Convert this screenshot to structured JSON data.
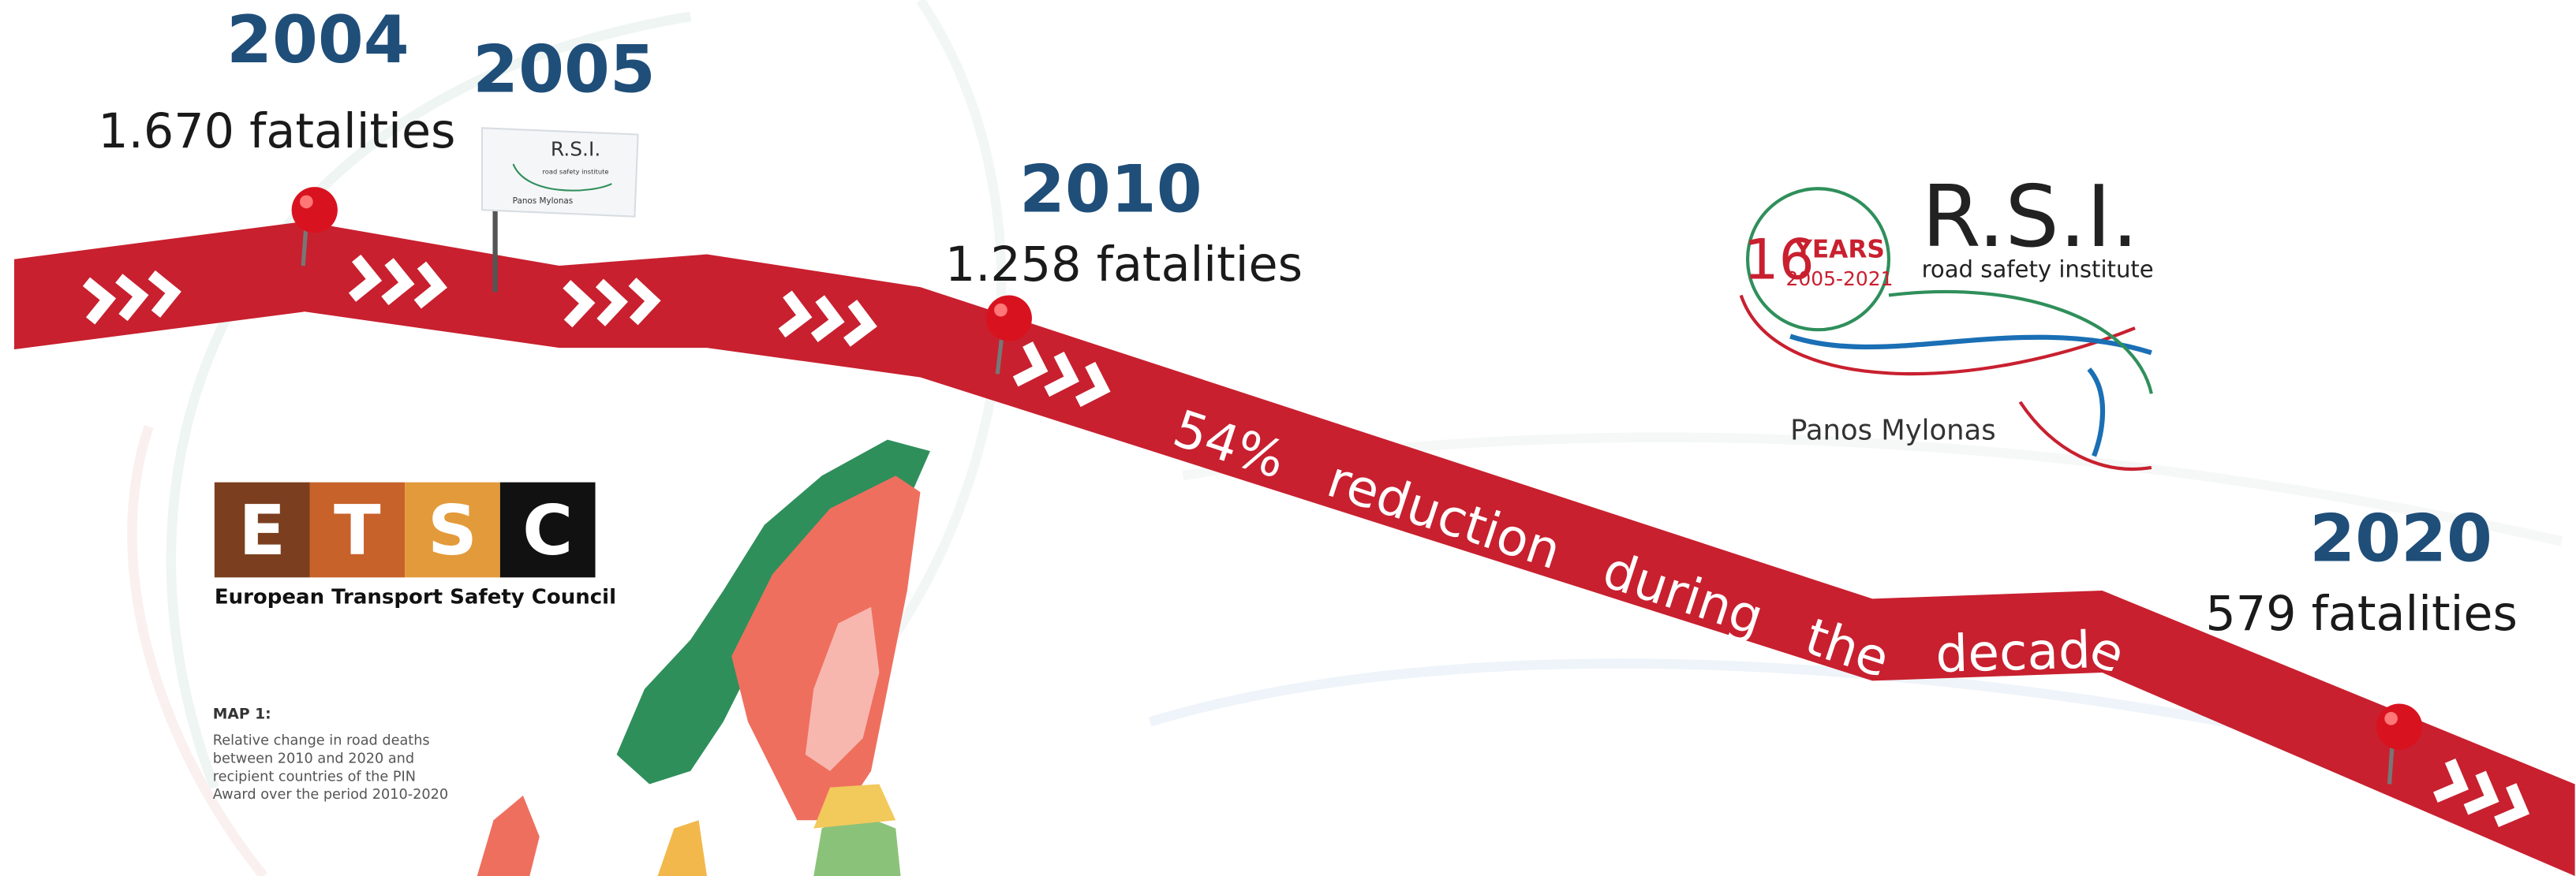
{
  "timeline": [
    {
      "year": "2004",
      "fatalities": "1.670 fatalities"
    },
    {
      "year": "2005"
    },
    {
      "year": "2010",
      "fatalities": "1.258 fatalities"
    },
    {
      "year": "2020",
      "fatalities": "579 fatalities"
    }
  ],
  "banner": "54% reduction during the decade",
  "etsc": {
    "letters": [
      "E",
      "T",
      "S",
      "C"
    ],
    "name": "European Transport Safety Council"
  },
  "map": {
    "title": "MAP 1:",
    "description": [
      "Relative change in road deaths",
      "between 2010 and 2020 and",
      "recipient countries of the PIN",
      "Award over the period 2010-2020"
    ]
  },
  "rsi": {
    "badge_number": "16",
    "badge_years": "YEARS",
    "badge_range": "2005-2021",
    "name": "R.S.I.",
    "subtitle": "road safety institute",
    "founder": "Panos Mylonas"
  }
}
